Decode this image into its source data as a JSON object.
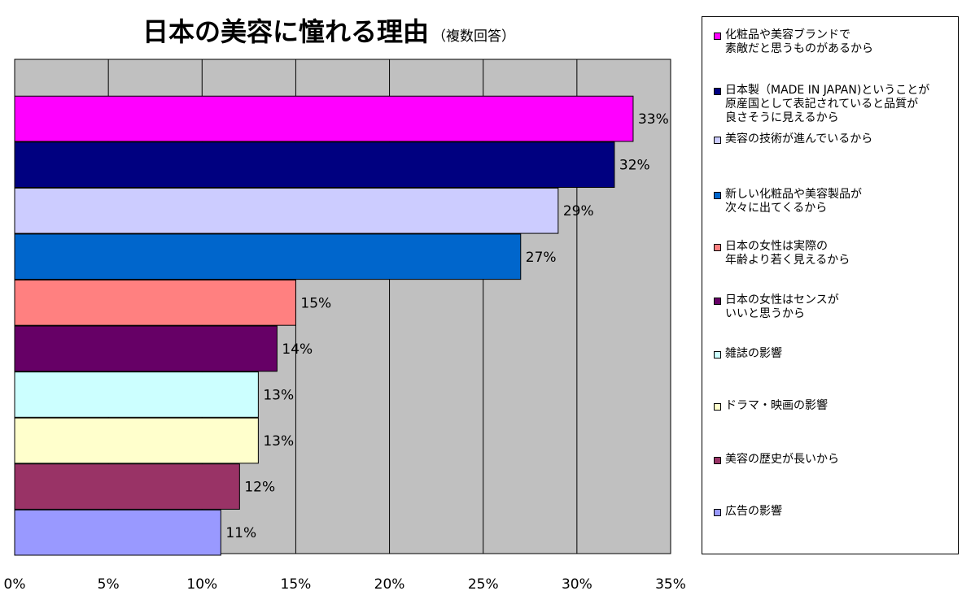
{
  "chart_data": {
    "type": "bar",
    "orientation": "horizontal",
    "title": "日本の美容に憧れる理由",
    "subtitle": "（複数回答）",
    "xlabel": "",
    "ylabel": "",
    "xlim": [
      0,
      35
    ],
    "x_ticks": [
      "0%",
      "5%",
      "10%",
      "15%",
      "20%",
      "25%",
      "30%",
      "35%"
    ],
    "grid": "vertical",
    "legend_position": "right",
    "plot_background": "#c0c0c0",
    "series": [
      {
        "name": "化粧品や美容ブランドで\n素敵だと思うものがあるから",
        "value": 33,
        "label": "33%",
        "color": "#ff00ff"
      },
      {
        "name": "日本製（MADE IN JAPAN)ということが\n原産国として表記されていると品質が\n良さそうに見えるから",
        "value": 32,
        "label": "32%",
        "color": "#000080"
      },
      {
        "name": "美容の技術が進んでいるから",
        "value": 29,
        "label": "29%",
        "color": "#ccccff"
      },
      {
        "name": "新しい化粧品や美容製品が\n次々に出てくるから",
        "value": 27,
        "label": "27%",
        "color": "#0066cc"
      },
      {
        "name": "日本の女性は実際の\n年齢より若く見えるから",
        "value": 15,
        "label": "15%",
        "color": "#ff8080"
      },
      {
        "name": "日本の女性はセンスが\nいいと思うから",
        "value": 14,
        "label": "14%",
        "color": "#660066"
      },
      {
        "name": "雑誌の影響",
        "value": 13,
        "label": "13%",
        "color": "#ccffff"
      },
      {
        "name": "ドラマ・映画の影響",
        "value": 13,
        "label": "13%",
        "color": "#ffffcc"
      },
      {
        "name": "美容の歴史が長いから",
        "value": 12,
        "label": "12%",
        "color": "#993366"
      },
      {
        "name": "広告の影響",
        "value": 11,
        "label": "11%",
        "color": "#9999ff"
      }
    ]
  }
}
